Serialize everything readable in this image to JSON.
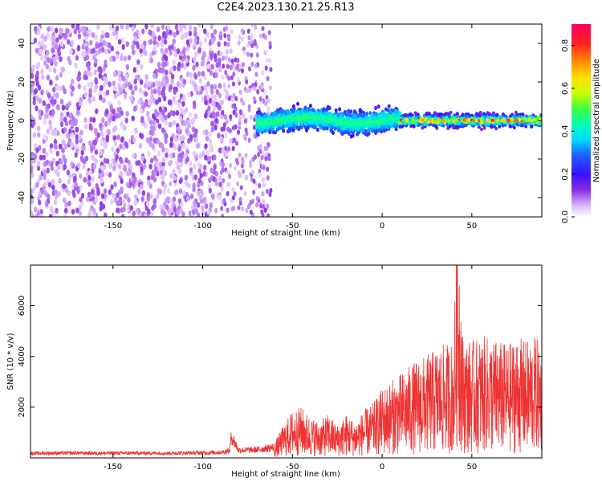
{
  "title": "C2E4.2023.130.21.25.R13",
  "chart_data": [
    {
      "type": "heatmap",
      "xlabel": "Height of straight line (km)",
      "ylabel": "Frequency (Hz)",
      "xlim": [
        -196,
        89
      ],
      "ylim": [
        -50,
        50
      ],
      "xticks": [
        -150,
        -100,
        -50,
        0,
        50
      ],
      "yticks": [
        -40,
        -20,
        0,
        20,
        40
      ],
      "colorbar": {
        "label": "Normalized spectral amplitude",
        "range": [
          0,
          0.9
        ],
        "ticks": [
          0.0,
          0.2,
          0.4,
          0.6,
          0.8
        ]
      },
      "description_of_structure": [
        {
          "x_range": [
            -196,
            -90
          ],
          "pattern": "broadband noise across all frequencies",
          "amplitude": [
            0.03,
            0.12
          ]
        },
        {
          "x_range": [
            -90,
            -62
          ],
          "pattern": "sparse noise with emerging carrier near 0 Hz",
          "amplitude": [
            0.05,
            0.2
          ]
        },
        {
          "x_range": [
            -70,
            10
          ],
          "pattern": "carrier centered near 0 Hz, ~±8 Hz width, undulating",
          "amplitude": [
            0.2,
            0.45
          ]
        },
        {
          "x_range": [
            10,
            89
          ],
          "pattern": "narrow carrier at 0 Hz",
          "amplitude": [
            0.4,
            0.9
          ]
        }
      ]
    },
    {
      "type": "line",
      "xlabel": "Height of straight line (km)",
      "ylabel": "SNR (10 * v/v)",
      "xlim": [
        -196,
        89
      ],
      "ylim": [
        0,
        7600
      ],
      "xticks": [
        -150,
        -100,
        -50,
        0,
        50
      ],
      "yticks": [
        2000,
        4000,
        6000
      ],
      "series": [
        {
          "color": "#ee3333",
          "x": [
            -196,
            -180,
            -160,
            -140,
            -120,
            -100,
            -90,
            -85,
            -84,
            -80,
            -70,
            -60,
            -55,
            -50,
            -45,
            -40,
            -35,
            -30,
            -25,
            -20,
            -15,
            -10,
            -5,
            0,
            5,
            10,
            15,
            20,
            25,
            30,
            35,
            40,
            42,
            45,
            50,
            55,
            60,
            65,
            70,
            75,
            80,
            85,
            89
          ],
          "y": [
            180,
            190,
            185,
            190,
            185,
            200,
            220,
            280,
            850,
            300,
            320,
            420,
            900,
            1300,
            1400,
            1100,
            1000,
            1200,
            900,
            1200,
            1000,
            1300,
            1500,
            1900,
            2100,
            2300,
            2500,
            2700,
            2800,
            3000,
            3100,
            3200,
            7500,
            3300,
            3200,
            3300,
            3300,
            3200,
            3100,
            3300,
            3200,
            3300,
            3200
          ]
        }
      ]
    }
  ]
}
